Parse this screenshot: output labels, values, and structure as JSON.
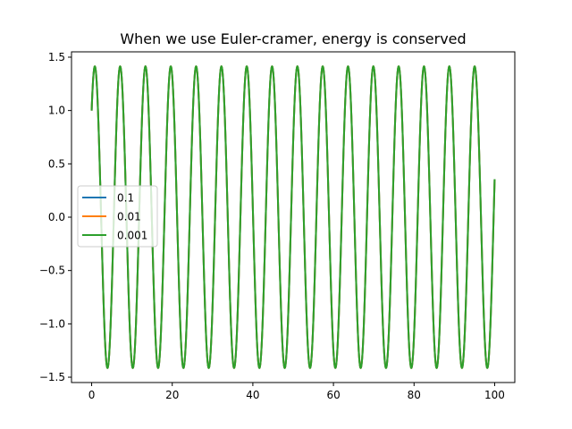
{
  "chart_data": {
    "type": "line",
    "title": "When we use Euler-cramer, energy is conserved",
    "xlabel": "",
    "ylabel": "",
    "xlim": [
      -5,
      105
    ],
    "ylim": [
      -1.55,
      1.55
    ],
    "x_ticks": [
      0,
      20,
      40,
      60,
      80,
      100
    ],
    "y_ticks": [
      -1.5,
      -1.0,
      -0.5,
      0.0,
      0.5,
      1.0,
      1.5
    ],
    "y_tick_labels": [
      "−1.5",
      "−1.0",
      "−0.5",
      "0.0",
      "0.5",
      "1.0",
      "1.5"
    ],
    "grid": false,
    "legend_position": "center-left",
    "series": [
      {
        "name": "0.1",
        "color": "#1f77b4",
        "description_of_curve": "sinusoid, amplitude ~1.414, period ~6.28, starting at y=1.0 at x=0, ending near 0.56 at x=100",
        "x_start": 0,
        "x_end": 100,
        "amplitude": 1.414,
        "angular_frequency": 1.0,
        "phase": 0.7854,
        "end_value": 0.56
      },
      {
        "name": "0.01",
        "color": "#ff7f0e",
        "x_start": 0,
        "x_end": 100,
        "amplitude": 1.414,
        "angular_frequency": 1.0,
        "phase": 0.7854,
        "end_value": 0.34
      },
      {
        "name": "0.001",
        "color": "#2ca02c",
        "x_start": 0,
        "x_end": 100,
        "amplitude": 1.414,
        "angular_frequency": 1.0,
        "phase": 0.7854,
        "end_value": 0.34
      }
    ]
  }
}
